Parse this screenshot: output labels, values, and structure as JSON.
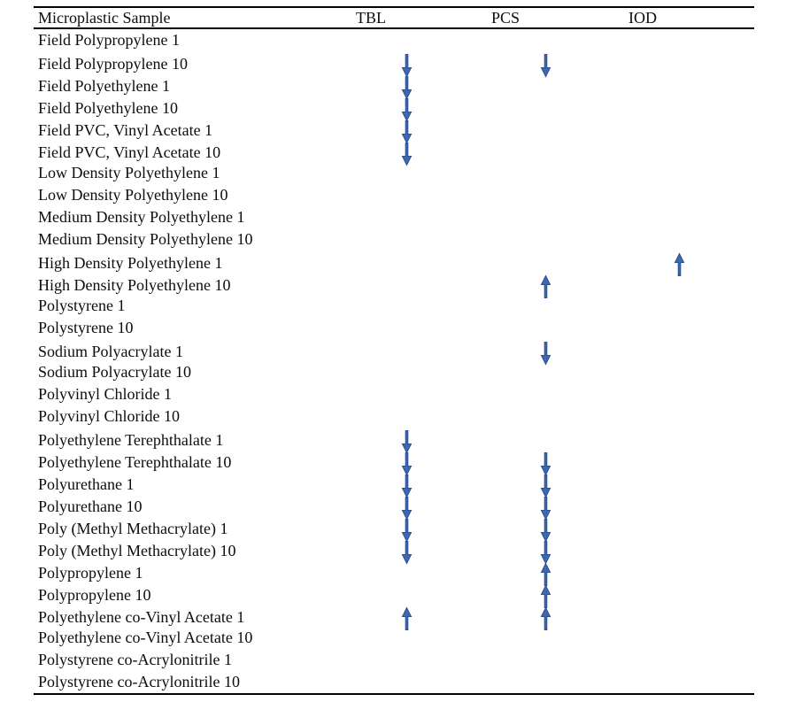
{
  "table": {
    "columns": [
      {
        "label": "Microplastic Sample"
      },
      {
        "label": "TBL"
      },
      {
        "label": "PCS"
      },
      {
        "label": "IOD"
      }
    ],
    "arrow_style": {
      "fill": "#3E68B0",
      "stroke": "#2E4F8E"
    },
    "rows": [
      {
        "sample": "Field Polypropylene 1",
        "tbl": "",
        "pcs": "",
        "iod": ""
      },
      {
        "sample": "Field Polypropylene 10",
        "tbl": "down",
        "pcs": "down",
        "iod": ""
      },
      {
        "sample": "Field Polyethylene 1",
        "tbl": "down",
        "pcs": "",
        "iod": ""
      },
      {
        "sample": "Field Polyethylene 10",
        "tbl": "down",
        "pcs": "",
        "iod": ""
      },
      {
        "sample": "Field PVC, Vinyl Acetate 1",
        "tbl": "down",
        "pcs": "",
        "iod": ""
      },
      {
        "sample": "Field PVC, Vinyl Acetate 10",
        "tbl": "down",
        "pcs": "",
        "iod": ""
      },
      {
        "sample": "Low Density Polyethylene 1",
        "tbl": "",
        "pcs": "",
        "iod": ""
      },
      {
        "sample": "Low Density Polyethylene 10",
        "tbl": "",
        "pcs": "",
        "iod": ""
      },
      {
        "sample": "Medium Density Polyethylene 1",
        "tbl": "",
        "pcs": "",
        "iod": ""
      },
      {
        "sample": "Medium Density Polyethylene 10",
        "tbl": "",
        "pcs": "",
        "iod": ""
      },
      {
        "sample": "High Density Polyethylene 1",
        "tbl": "",
        "pcs": "",
        "iod": "up"
      },
      {
        "sample": "High Density Polyethylene 10",
        "tbl": "",
        "pcs": "up",
        "iod": ""
      },
      {
        "sample": "Polystyrene 1",
        "tbl": "",
        "pcs": "",
        "iod": ""
      },
      {
        "sample": "Polystyrene 10",
        "tbl": "",
        "pcs": "",
        "iod": ""
      },
      {
        "sample": "Sodium Polyacrylate 1",
        "tbl": "",
        "pcs": "down",
        "iod": ""
      },
      {
        "sample": "Sodium Polyacrylate 10",
        "tbl": "",
        "pcs": "",
        "iod": ""
      },
      {
        "sample": "Polyvinyl Chloride 1",
        "tbl": "",
        "pcs": "",
        "iod": ""
      },
      {
        "sample": "Polyvinyl Chloride 10",
        "tbl": "",
        "pcs": "",
        "iod": ""
      },
      {
        "sample": "Polyethylene Terephthalate 1",
        "tbl": "down",
        "pcs": "",
        "iod": ""
      },
      {
        "sample": "Polyethylene Terephthalate 10",
        "tbl": "down",
        "pcs": "down",
        "iod": ""
      },
      {
        "sample": "Polyurethane 1",
        "tbl": "down",
        "pcs": "down",
        "iod": ""
      },
      {
        "sample": "Polyurethane 10",
        "tbl": "down",
        "pcs": "down",
        "iod": ""
      },
      {
        "sample": "Poly (Methyl Methacrylate) 1",
        "tbl": "down",
        "pcs": "down",
        "iod": ""
      },
      {
        "sample": "Poly (Methyl Methacrylate) 10",
        "tbl": "down",
        "pcs": "down",
        "iod": ""
      },
      {
        "sample": "Polypropylene 1",
        "tbl": "",
        "pcs": "up",
        "iod": ""
      },
      {
        "sample": "Polypropylene 10",
        "tbl": "",
        "pcs": "up",
        "iod": ""
      },
      {
        "sample": "Polyethylene co-Vinyl Acetate 1",
        "tbl": "up",
        "pcs": "up",
        "iod": ""
      },
      {
        "sample": "Polyethylene co-Vinyl Acetate 10",
        "tbl": "",
        "pcs": "",
        "iod": ""
      },
      {
        "sample": "Polystyrene co-Acrylonitrile 1",
        "tbl": "",
        "pcs": "",
        "iod": ""
      },
      {
        "sample": "Polystyrene co-Acrylonitrile 10",
        "tbl": "",
        "pcs": "",
        "iod": ""
      }
    ]
  }
}
